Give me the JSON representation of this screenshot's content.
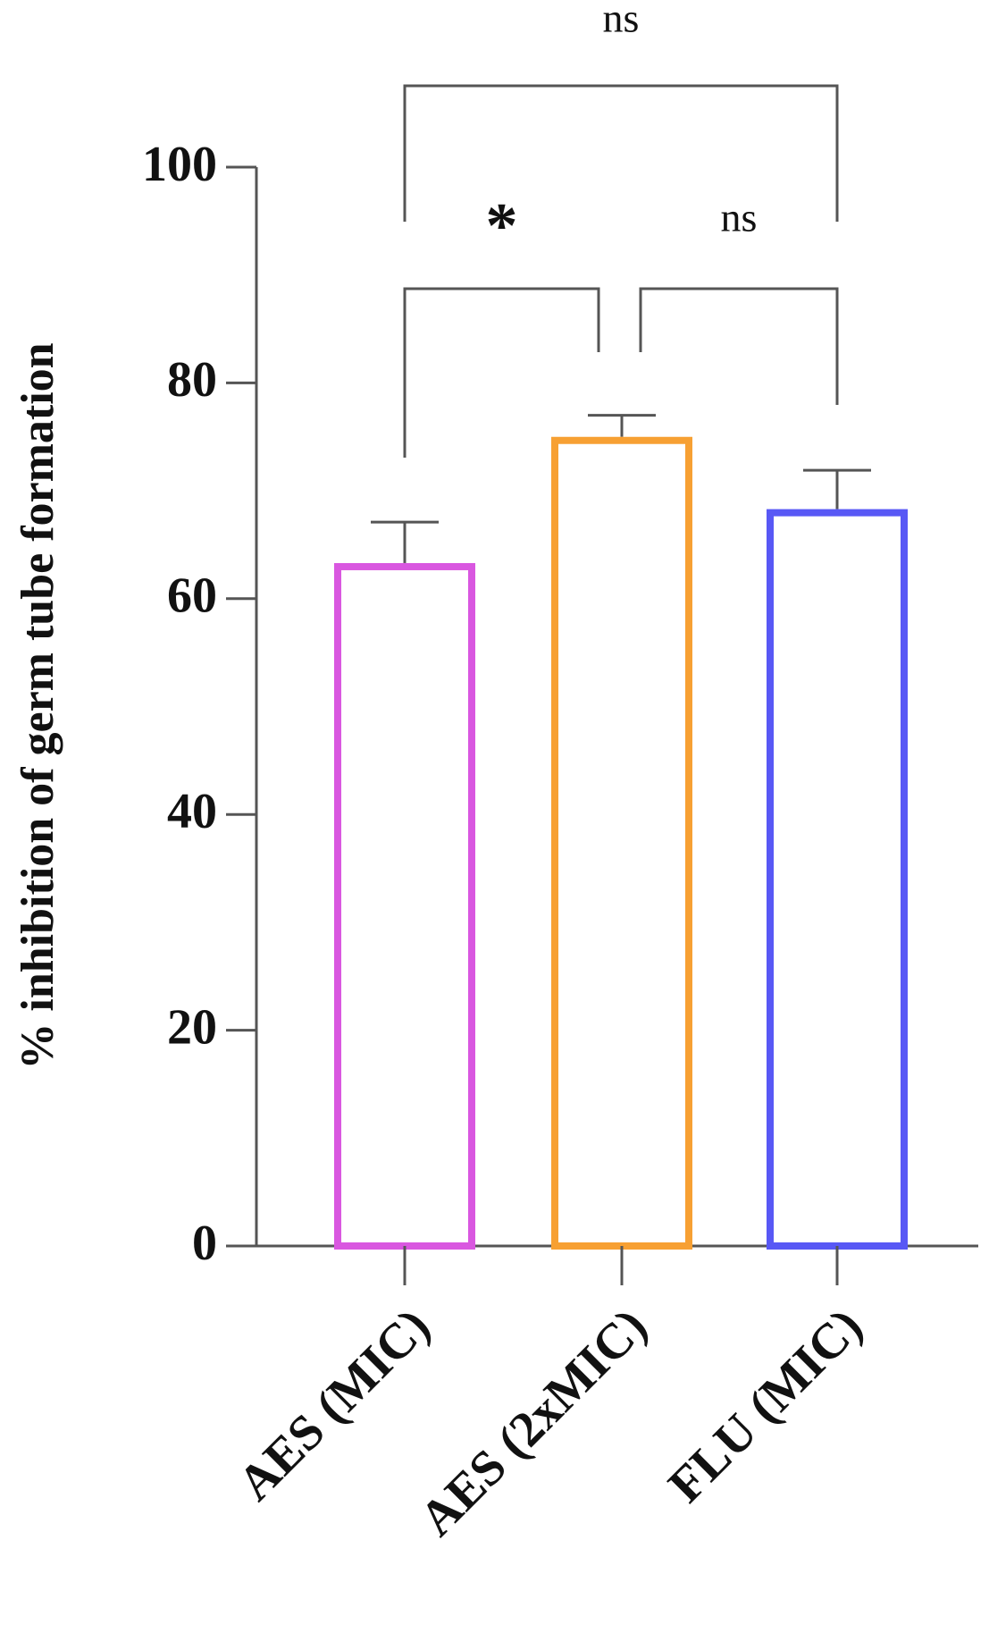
{
  "chart_data": {
    "type": "bar",
    "y_label": "% inhibition of germ tube formation",
    "categories": [
      "AES (MIC)",
      "AES (2xMIC)",
      "FLU (MIC)"
    ],
    "values": [
      63.3,
      75.0,
      68.3
    ],
    "errors": [
      3.8,
      2.0,
      3.6
    ],
    "colors": [
      "#d957e0",
      "#f7a033",
      "#5858f5"
    ],
    "ylim": [
      0,
      100
    ],
    "yticks": [
      0,
      20,
      40,
      60,
      80,
      100
    ],
    "significance": [
      {
        "label": "ns",
        "from": 0,
        "to": 2
      },
      {
        "label": "*",
        "from": 0,
        "to": 1
      },
      {
        "label": "ns",
        "from": 1,
        "to": 2
      }
    ]
  }
}
